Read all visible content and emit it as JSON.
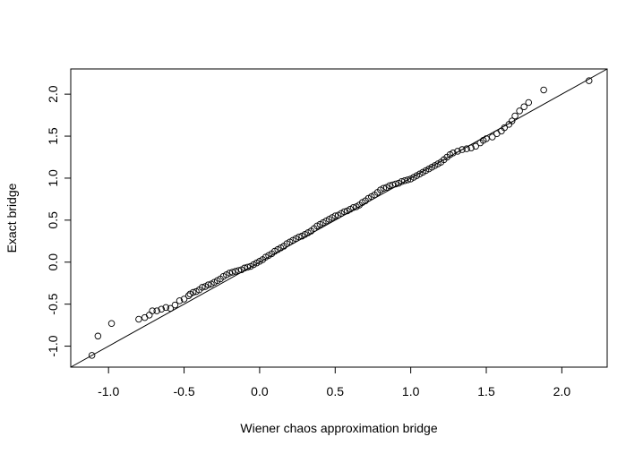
{
  "chart_data": {
    "type": "scatter",
    "title": "",
    "xlabel": "Wiener chaos approximation bridge",
    "ylabel": "Exact bridge",
    "xlim": [
      -1.25,
      2.3
    ],
    "ylim": [
      -1.25,
      2.3
    ],
    "x_ticks": [
      -1.0,
      -0.5,
      0.0,
      0.5,
      1.0,
      1.5,
      2.0
    ],
    "x_tick_labels": [
      "-1.0",
      "-0.5",
      "0.0",
      "0.5",
      "1.0",
      "1.5",
      "2.0"
    ],
    "y_ticks": [
      -1.0,
      -0.5,
      0.0,
      0.5,
      1.0,
      1.5,
      2.0
    ],
    "y_tick_labels": [
      "-1.0",
      "-0.5",
      "0.0",
      "0.5",
      "1.0",
      "1.5",
      "2.0"
    ],
    "reference_line": {
      "intercept": 0,
      "slope": 1
    },
    "marker": "open-circle",
    "grid": false,
    "legend": "none",
    "series": [
      {
        "points": [
          [
            -1.11,
            -1.11
          ],
          [
            -1.07,
            -0.88
          ],
          [
            -0.98,
            -0.73
          ],
          [
            -0.8,
            -0.68
          ],
          [
            -0.76,
            -0.66
          ],
          [
            -0.73,
            -0.63
          ],
          [
            -0.71,
            -0.58
          ],
          [
            -0.68,
            -0.58
          ],
          [
            -0.65,
            -0.56
          ],
          [
            -0.62,
            -0.54
          ],
          [
            -0.59,
            -0.55
          ],
          [
            -0.56,
            -0.51
          ],
          [
            -0.53,
            -0.46
          ],
          [
            -0.5,
            -0.44
          ],
          [
            -0.47,
            -0.4
          ],
          [
            -0.46,
            -0.38
          ],
          [
            -0.44,
            -0.36
          ],
          [
            -0.42,
            -0.35
          ],
          [
            -0.4,
            -0.33
          ],
          [
            -0.38,
            -0.3
          ],
          [
            -0.36,
            -0.29
          ],
          [
            -0.34,
            -0.27
          ],
          [
            -0.32,
            -0.26
          ],
          [
            -0.3,
            -0.24
          ],
          [
            -0.28,
            -0.22
          ],
          [
            -0.26,
            -0.2
          ],
          [
            -0.24,
            -0.17
          ],
          [
            -0.22,
            -0.15
          ],
          [
            -0.2,
            -0.13
          ],
          [
            -0.18,
            -0.12
          ],
          [
            -0.16,
            -0.11
          ],
          [
            -0.14,
            -0.1
          ],
          [
            -0.12,
            -0.09
          ],
          [
            -0.1,
            -0.07
          ],
          [
            -0.08,
            -0.06
          ],
          [
            -0.06,
            -0.05
          ],
          [
            -0.04,
            -0.03
          ],
          [
            -0.02,
            -0.01
          ],
          [
            0.0,
            0.01
          ],
          [
            0.02,
            0.03
          ],
          [
            0.04,
            0.06
          ],
          [
            0.06,
            0.08
          ],
          [
            0.08,
            0.1
          ],
          [
            0.1,
            0.13
          ],
          [
            0.12,
            0.15
          ],
          [
            0.14,
            0.17
          ],
          [
            0.16,
            0.19
          ],
          [
            0.18,
            0.22
          ],
          [
            0.2,
            0.24
          ],
          [
            0.22,
            0.26
          ],
          [
            0.24,
            0.28
          ],
          [
            0.26,
            0.3
          ],
          [
            0.28,
            0.31
          ],
          [
            0.3,
            0.33
          ],
          [
            0.32,
            0.35
          ],
          [
            0.34,
            0.37
          ],
          [
            0.36,
            0.4
          ],
          [
            0.38,
            0.43
          ],
          [
            0.4,
            0.45
          ],
          [
            0.42,
            0.47
          ],
          [
            0.44,
            0.49
          ],
          [
            0.46,
            0.51
          ],
          [
            0.48,
            0.53
          ],
          [
            0.5,
            0.55
          ],
          [
            0.52,
            0.56
          ],
          [
            0.54,
            0.58
          ],
          [
            0.56,
            0.6
          ],
          [
            0.58,
            0.61
          ],
          [
            0.6,
            0.63
          ],
          [
            0.62,
            0.65
          ],
          [
            0.64,
            0.66
          ],
          [
            0.66,
            0.68
          ],
          [
            0.68,
            0.71
          ],
          [
            0.7,
            0.73
          ],
          [
            0.72,
            0.76
          ],
          [
            0.74,
            0.78
          ],
          [
            0.76,
            0.8
          ],
          [
            0.78,
            0.83
          ],
          [
            0.8,
            0.86
          ],
          [
            0.82,
            0.88
          ],
          [
            0.84,
            0.89
          ],
          [
            0.86,
            0.91
          ],
          [
            0.88,
            0.92
          ],
          [
            0.9,
            0.93
          ],
          [
            0.92,
            0.94
          ],
          [
            0.94,
            0.96
          ],
          [
            0.96,
            0.97
          ],
          [
            0.98,
            0.98
          ],
          [
            1.0,
            0.99
          ],
          [
            1.02,
            1.01
          ],
          [
            1.04,
            1.03
          ],
          [
            1.06,
            1.05
          ],
          [
            1.08,
            1.07
          ],
          [
            1.1,
            1.09
          ],
          [
            1.12,
            1.11
          ],
          [
            1.14,
            1.13
          ],
          [
            1.16,
            1.15
          ],
          [
            1.18,
            1.17
          ],
          [
            1.2,
            1.19
          ],
          [
            1.22,
            1.22
          ],
          [
            1.24,
            1.25
          ],
          [
            1.26,
            1.28
          ],
          [
            1.28,
            1.3
          ],
          [
            1.31,
            1.32
          ],
          [
            1.34,
            1.34
          ],
          [
            1.37,
            1.35
          ],
          [
            1.4,
            1.36
          ],
          [
            1.43,
            1.38
          ],
          [
            1.46,
            1.42
          ],
          [
            1.48,
            1.45
          ],
          [
            1.5,
            1.47
          ],
          [
            1.54,
            1.49
          ],
          [
            1.57,
            1.53
          ],
          [
            1.6,
            1.56
          ],
          [
            1.62,
            1.6
          ],
          [
            1.65,
            1.64
          ],
          [
            1.67,
            1.68
          ],
          [
            1.69,
            1.74
          ],
          [
            1.72,
            1.8
          ],
          [
            1.75,
            1.85
          ],
          [
            1.78,
            1.9
          ],
          [
            1.88,
            2.05
          ],
          [
            2.18,
            2.16
          ]
        ]
      }
    ]
  }
}
